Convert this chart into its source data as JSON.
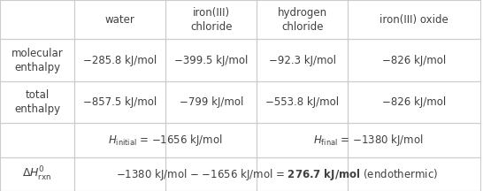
{
  "col_headers": [
    "",
    "water",
    "iron(III)\nchloride",
    "hydrogen\nchloride",
    "iron(III) oxide"
  ],
  "row1_label": "molecular\nenthalpy",
  "row1_values": [
    "−285.8 kJ/mol",
    "−399.5 kJ/mol",
    "−92.3 kJ/mol",
    "−826 kJ/mol"
  ],
  "row2_label": "total\nenthalpy",
  "row2_values": [
    "−857.5 kJ/mol",
    "−799 kJ/mol",
    "−553.8 kJ/mol",
    "−826 kJ/mol"
  ],
  "row3_col1": "H_initial = −1656 kJ/mol",
  "row3_col3": "H_final = −1380 kJ/mol",
  "row4_label": "ΔH°_rxn",
  "row4_value": "−1380 kJ/mol − −1656 kJ/mol = 276.7 kJ/mol (endothermic)",
  "row4_bold_part": "276.7 kJ/mol",
  "bg_color": "#ffffff",
  "text_color": "#404040",
  "line_color": "#cccccc",
  "font_size": 8.5
}
